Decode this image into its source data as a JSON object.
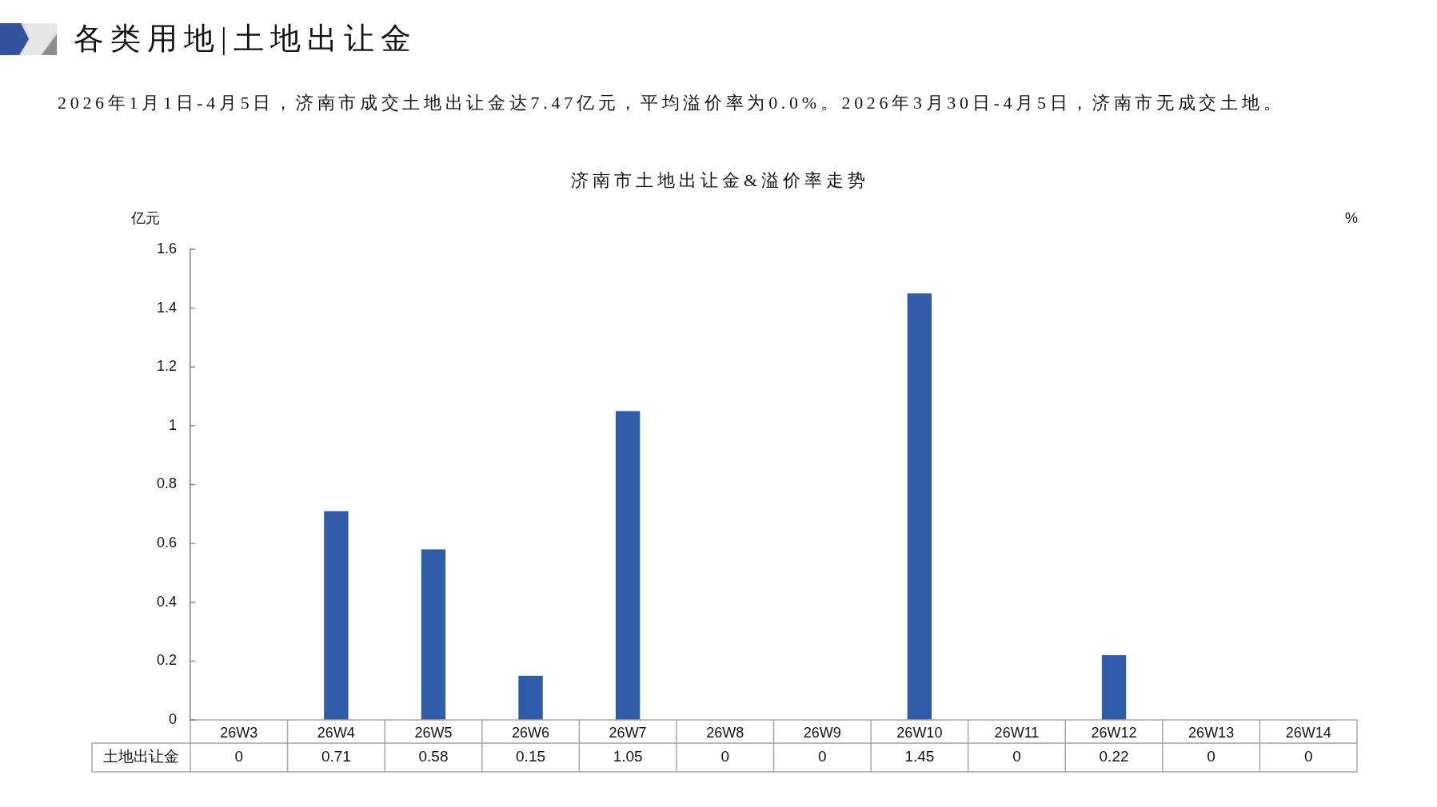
{
  "chart_data": {
    "type": "bar",
    "title": "各类用地|土地出让金",
    "subtitle": "济南市土地出让金&溢价率走势",
    "annotations": [
      "2026年1月1日-4月5日，济南市成交土地出让金达7.47亿元，平均溢价率为0.0%。2026年3月30日-4月5日，济南市无成交土地。"
    ],
    "ylabel": "亿元",
    "y2label": "%",
    "categories": [
      "26W3",
      "26W4",
      "26W5",
      "26W6",
      "26W7",
      "26W8",
      "26W9",
      "26W10",
      "26W11",
      "26W12",
      "26W13",
      "26W14"
    ],
    "series": [
      {
        "name": "土地出让金",
        "color": "#2f5ba8",
        "values": [
          0,
          0.71,
          0.58,
          0.15,
          1.05,
          0,
          0,
          1.45,
          0,
          0.22,
          0,
          0
        ]
      }
    ],
    "ylim": [
      0,
      1.6
    ],
    "yticks": [
      0,
      0.2,
      0.4,
      0.6,
      0.8,
      1,
      1.2,
      1.4,
      1.6
    ],
    "data_labels": true,
    "grid": false,
    "legend": false
  }
}
